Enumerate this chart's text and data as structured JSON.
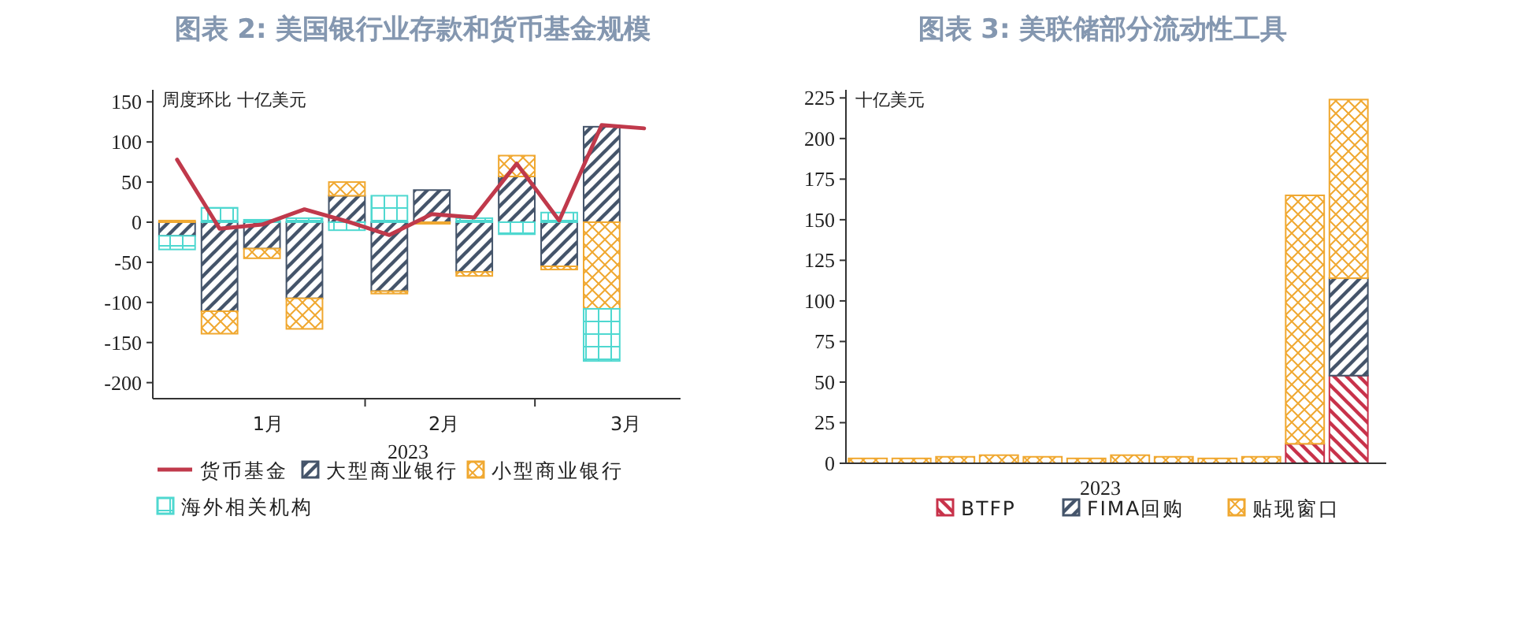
{
  "chart_data": [
    {
      "type": "bar",
      "stacked": true,
      "title": "图表 2:   美国银行业存款和货币基金规模",
      "ylabel": "周度环比 十亿美元",
      "xlabel": "2023",
      "legend": "bottom",
      "grid": false,
      "x": [
        "2023-01-01",
        "2023-01-08",
        "2023-01-15",
        "2023-01-22",
        "2023-01-29",
        "2023-02-05",
        "2023-02-12",
        "2023-02-19",
        "2023-02-26",
        "2023-03-05",
        "2023-03-12",
        "2023-03-19"
      ],
      "xlim": [
        "2022-12-28",
        "2023-03-25"
      ],
      "xticks": [
        {
          "value": "2023-01-16",
          "label": "1月"
        },
        {
          "value": "2023-02-01",
          "label": null
        },
        {
          "value": "2023-02-14",
          "label": "2月"
        },
        {
          "value": "2023-03-01",
          "label": null
        },
        {
          "value": "2023-03-16",
          "label": "3月"
        }
      ],
      "ylim": [
        -220,
        165
      ],
      "yticks": [
        -200,
        -150,
        -100,
        -50,
        0,
        50,
        100,
        150
      ],
      "series": [
        {
          "name": "货币基金",
          "type": "line",
          "color": "#c0394b",
          "values": [
            78,
            -8,
            -3,
            16,
            1,
            -16,
            10,
            6,
            73,
            2,
            121,
            117
          ]
        },
        {
          "name": "大型商业银行",
          "color": "#44546a",
          "values": [
            -17,
            -111,
            -33,
            -95,
            33,
            -86,
            40,
            -62,
            57,
            -55,
            119,
            null
          ]
        },
        {
          "name": "小型商业银行",
          "color": "#f0a830",
          "values": [
            2,
            -28,
            -12,
            -38,
            17,
            -3,
            -2,
            -5,
            26,
            -4,
            -108,
            null
          ]
        },
        {
          "name": "海外相关机构",
          "color": "#4fd8d0",
          "values": [
            -17,
            18,
            3,
            5,
            -10,
            33,
            0,
            5,
            -15,
            12,
            -65,
            null
          ]
        }
      ]
    },
    {
      "type": "bar",
      "stacked": true,
      "title": "图表 3:   美联储部分流动性工具",
      "ylabel": "十亿美元",
      "xlabel": "2023",
      "legend": "bottom",
      "grid": false,
      "categories": [
        null,
        null,
        null,
        null,
        null,
        null,
        null,
        null,
        null,
        null,
        null,
        null
      ],
      "ylim": [
        0,
        230
      ],
      "yticks": [
        0,
        25,
        50,
        75,
        100,
        125,
        150,
        175,
        200,
        225
      ],
      "series": [
        {
          "name": "BTFP",
          "color": "#c8324a",
          "values": [
            0,
            0,
            0,
            0,
            0,
            0,
            0,
            0,
            0,
            0,
            12,
            54
          ]
        },
        {
          "name": "FIMA回购",
          "color": "#44546a",
          "values": [
            0,
            0,
            0,
            0,
            0,
            0,
            0,
            0,
            0,
            0,
            0,
            60
          ]
        },
        {
          "name": "贴现窗口",
          "color": "#f0a830",
          "values": [
            3,
            3,
            4,
            5,
            4,
            3,
            5,
            4,
            3,
            4,
            153,
            110
          ]
        }
      ]
    }
  ]
}
